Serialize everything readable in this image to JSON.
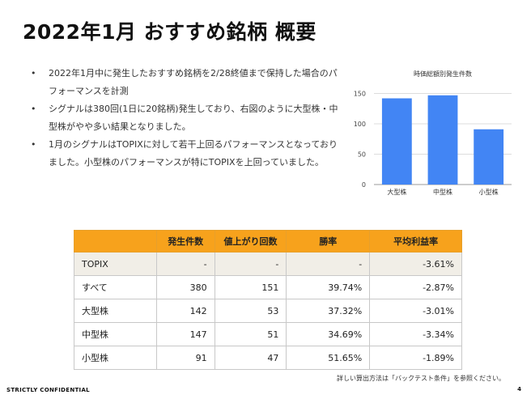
{
  "slide": {
    "title": "2022年1月 おすすめ銘柄 概要",
    "bullets": [
      "2022年1月中に発生したおすすめ銘柄を2/28終値まで保持した場合のパフォーマンスを計測",
      "シグナルは380回(1日に20銘柄)発生しており、右図のように大型株・中型株がやや多い結果となりました。",
      "1月のシグナルはTOPIXに対して若干上回るパフォーマンスとなっておりました。小型株のパフォーマンスが特にTOPIXを上回っていました。"
    ],
    "note": "詳しい算出方法は「バックテスト条件」を参照ください。",
    "confidential": "STRICTLY CONFIDENTIAL",
    "page_number": "4"
  },
  "table": {
    "headers": [
      "",
      "発生件数",
      "値上がり回数",
      "勝率",
      "平均利益率"
    ],
    "rows": [
      [
        "TOPIX",
        "-",
        "-",
        "-",
        "-3.61%"
      ],
      [
        "すべて",
        "380",
        "151",
        "39.74%",
        "-2.87%"
      ],
      [
        "大型株",
        "142",
        "53",
        "37.32%",
        "-3.01%"
      ],
      [
        "中型株",
        "147",
        "51",
        "34.69%",
        "-3.34%"
      ],
      [
        "小型株",
        "91",
        "47",
        "51.65%",
        "-1.89%"
      ]
    ],
    "highlight_row": 0,
    "colors": {
      "header_bg": "#f7a21c",
      "highlight_bg": "#f1eee7"
    }
  },
  "chart_data": {
    "type": "bar",
    "title": "時価総額別発生件数",
    "categories": [
      "大型株",
      "中型株",
      "小型株"
    ],
    "values": [
      142,
      147,
      91
    ],
    "yticks": [
      0,
      50,
      100,
      150
    ],
    "ylim": [
      0,
      160
    ],
    "grid": true,
    "bar_color": "#4285f4"
  }
}
